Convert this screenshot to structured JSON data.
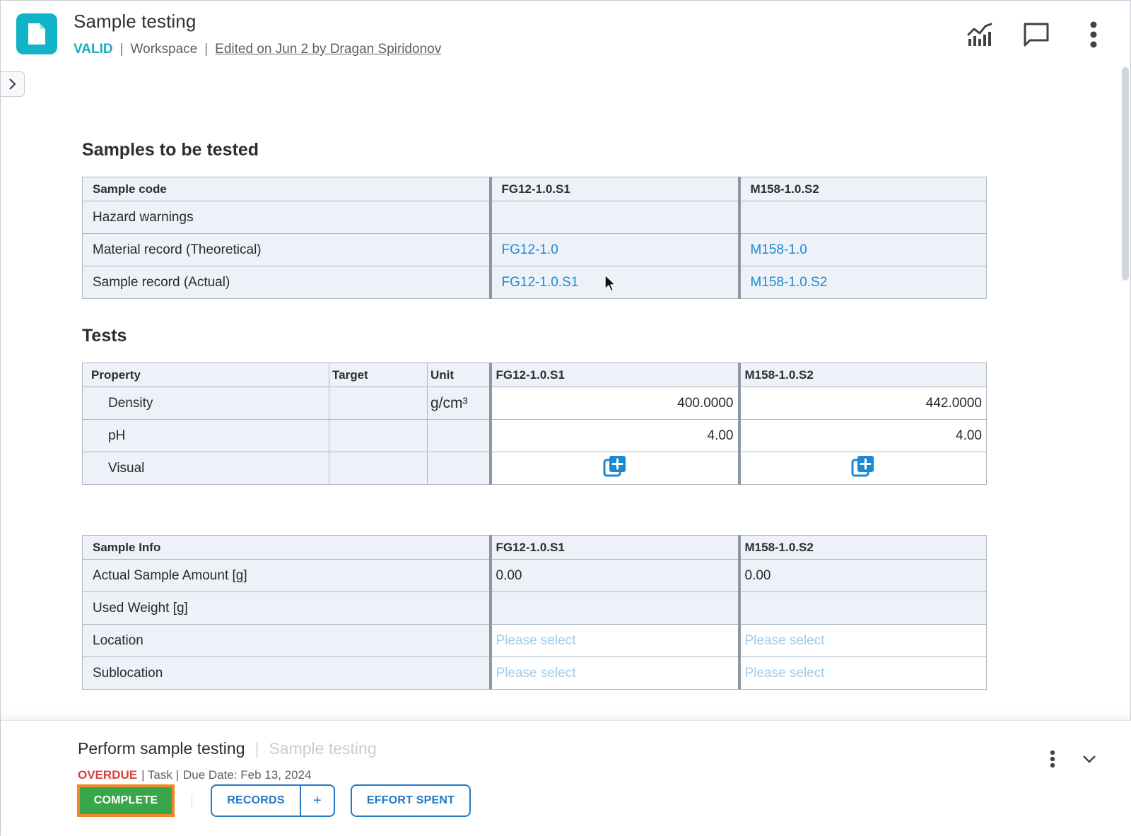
{
  "header": {
    "title": "Sample testing",
    "status": "VALID",
    "separator": "|",
    "location": "Workspace",
    "edited": "Edited on Jun 2 by Dragan Spiridonov",
    "icons": [
      "document-icon",
      "analytics-icon",
      "comment-icon",
      "more-vertical-icon"
    ],
    "accent_color": "#11b3c6"
  },
  "samples": {
    "title": "Samples to be tested",
    "headers": [
      "Sample code",
      "FG12-1.0.S1",
      "M158-1.0.S2"
    ],
    "rows": [
      {
        "label": "Hazard warnings",
        "values": [
          "",
          ""
        ]
      },
      {
        "label": "Material record (Theoretical)",
        "values": [
          "FG12-1.0",
          "M158-1.0"
        ]
      },
      {
        "label": "Sample record (Actual)",
        "values": [
          "FG12-1.0.S1",
          "M158-1.0.S2"
        ]
      }
    ]
  },
  "tests": {
    "title": "Tests",
    "headers": [
      "Property",
      "Target",
      "Unit",
      "FG12-1.0.S1",
      "M158-1.0.S2"
    ],
    "rows": [
      {
        "property": "Density",
        "target": "",
        "unit": "g/cm³",
        "values": [
          "400.0000",
          "442.0000"
        ]
      },
      {
        "property": "pH",
        "target": "",
        "unit": "",
        "values": [
          "4.00",
          "4.00"
        ]
      },
      {
        "property": "Visual",
        "target": "",
        "unit": "",
        "values": [
          "add-attachment-icon",
          "add-attachment-icon"
        ]
      }
    ]
  },
  "sample_info": {
    "headers": [
      "Sample Info",
      "FG12-1.0.S1",
      "M158-1.0.S2"
    ],
    "rows": [
      {
        "label": "Actual Sample Amount [g]",
        "values": [
          "0.00",
          "0.00"
        ]
      },
      {
        "label": "Used Weight [g]",
        "values": [
          "",
          ""
        ]
      },
      {
        "label": "Location",
        "values": [
          "Please select",
          "Please select"
        ]
      },
      {
        "label": "Sublocation",
        "values": [
          "Please select",
          "Please select"
        ]
      }
    ]
  },
  "task": {
    "title": "Perform sample testing",
    "separator": "|",
    "subtitle": "Sample testing",
    "status": "OVERDUE",
    "type": "| Task |",
    "due": "Due Date: Feb 13, 2024",
    "complete_label": "COMPLETE",
    "records_label": "RECORDS",
    "records_add": "+",
    "effort_label": "EFFORT SPENT",
    "complete_color": "#3aa64a",
    "overdue_color": "#d6413b"
  }
}
